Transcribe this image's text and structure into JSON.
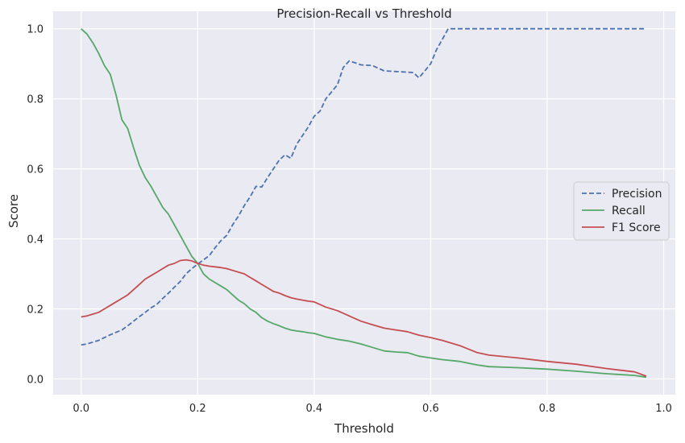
{
  "chart_data": {
    "type": "line",
    "title": "Precision-Recall vs Threshold",
    "xlabel": "Threshold",
    "ylabel": "Score",
    "xlim": [
      -0.048,
      1.02
    ],
    "ylim": [
      -0.045,
      1.05
    ],
    "xticks": [
      0.0,
      0.2,
      0.4,
      0.6,
      0.8,
      1.0
    ],
    "xtick_labels": [
      "0.0",
      "0.2",
      "0.4",
      "0.6",
      "0.8",
      "1.0"
    ],
    "yticks": [
      0.0,
      0.2,
      0.4,
      0.6,
      0.8,
      1.0
    ],
    "ytick_labels": [
      "0.0",
      "0.2",
      "0.4",
      "0.6",
      "0.8",
      "1.0"
    ],
    "grid": true,
    "background": "#eaeaf2",
    "grid_color": "#ffffff",
    "legend_position": "center-right",
    "series": [
      {
        "name": "Precision",
        "color": "#4c72b0",
        "style": "dashed",
        "x": [
          0.0,
          0.01,
          0.02,
          0.03,
          0.04,
          0.05,
          0.06,
          0.07,
          0.08,
          0.09,
          0.1,
          0.11,
          0.12,
          0.13,
          0.14,
          0.15,
          0.16,
          0.17,
          0.18,
          0.19,
          0.2,
          0.21,
          0.22,
          0.23,
          0.24,
          0.25,
          0.26,
          0.27,
          0.28,
          0.29,
          0.3,
          0.31,
          0.32,
          0.33,
          0.34,
          0.35,
          0.36,
          0.37,
          0.38,
          0.39,
          0.4,
          0.41,
          0.42,
          0.43,
          0.44,
          0.45,
          0.46,
          0.47,
          0.48,
          0.5,
          0.52,
          0.54,
          0.56,
          0.57,
          0.58,
          0.59,
          0.6,
          0.61,
          0.62,
          0.63,
          0.65,
          0.7,
          0.75,
          0.8,
          0.85,
          0.9,
          0.95,
          0.97
        ],
        "values": [
          0.097,
          0.1,
          0.105,
          0.11,
          0.118,
          0.126,
          0.133,
          0.14,
          0.152,
          0.165,
          0.178,
          0.19,
          0.203,
          0.213,
          0.23,
          0.245,
          0.262,
          0.278,
          0.3,
          0.315,
          0.328,
          0.34,
          0.352,
          0.375,
          0.395,
          0.41,
          0.44,
          0.465,
          0.495,
          0.52,
          0.55,
          0.548,
          0.575,
          0.6,
          0.625,
          0.64,
          0.63,
          0.67,
          0.695,
          0.72,
          0.75,
          0.765,
          0.8,
          0.82,
          0.84,
          0.89,
          0.908,
          0.903,
          0.897,
          0.895,
          0.88,
          0.878,
          0.876,
          0.875,
          0.86,
          0.88,
          0.9,
          0.94,
          0.97,
          1.0,
          1.0,
          1.0,
          1.0,
          1.0,
          1.0,
          1.0,
          1.0,
          1.0
        ]
      },
      {
        "name": "Recall",
        "color": "#55a868",
        "style": "solid",
        "x": [
          0.0,
          0.01,
          0.02,
          0.03,
          0.04,
          0.05,
          0.06,
          0.07,
          0.08,
          0.09,
          0.1,
          0.11,
          0.12,
          0.13,
          0.14,
          0.15,
          0.16,
          0.17,
          0.18,
          0.19,
          0.2,
          0.21,
          0.22,
          0.23,
          0.24,
          0.25,
          0.26,
          0.27,
          0.28,
          0.29,
          0.3,
          0.31,
          0.32,
          0.33,
          0.34,
          0.35,
          0.36,
          0.37,
          0.38,
          0.39,
          0.4,
          0.42,
          0.44,
          0.46,
          0.48,
          0.5,
          0.52,
          0.54,
          0.56,
          0.58,
          0.6,
          0.62,
          0.65,
          0.68,
          0.7,
          0.75,
          0.8,
          0.85,
          0.9,
          0.95,
          0.97
        ],
        "values": [
          1.0,
          0.985,
          0.96,
          0.93,
          0.895,
          0.87,
          0.81,
          0.74,
          0.715,
          0.66,
          0.61,
          0.575,
          0.55,
          0.52,
          0.49,
          0.47,
          0.44,
          0.41,
          0.38,
          0.35,
          0.33,
          0.3,
          0.285,
          0.275,
          0.265,
          0.255,
          0.24,
          0.225,
          0.215,
          0.2,
          0.19,
          0.175,
          0.165,
          0.158,
          0.152,
          0.145,
          0.14,
          0.137,
          0.135,
          0.132,
          0.13,
          0.12,
          0.113,
          0.108,
          0.1,
          0.09,
          0.08,
          0.077,
          0.075,
          0.065,
          0.06,
          0.055,
          0.05,
          0.04,
          0.035,
          0.032,
          0.028,
          0.022,
          0.015,
          0.01,
          0.005
        ]
      },
      {
        "name": "F1 Score",
        "color": "#c44e52",
        "style": "solid",
        "x": [
          0.0,
          0.01,
          0.02,
          0.03,
          0.04,
          0.05,
          0.06,
          0.07,
          0.08,
          0.09,
          0.1,
          0.11,
          0.12,
          0.13,
          0.14,
          0.15,
          0.16,
          0.17,
          0.18,
          0.19,
          0.2,
          0.21,
          0.22,
          0.23,
          0.24,
          0.25,
          0.26,
          0.27,
          0.28,
          0.29,
          0.3,
          0.31,
          0.32,
          0.33,
          0.34,
          0.35,
          0.36,
          0.37,
          0.38,
          0.39,
          0.4,
          0.42,
          0.44,
          0.46,
          0.48,
          0.5,
          0.52,
          0.54,
          0.56,
          0.58,
          0.6,
          0.62,
          0.65,
          0.68,
          0.7,
          0.75,
          0.8,
          0.85,
          0.9,
          0.95,
          0.97
        ],
        "values": [
          0.177,
          0.18,
          0.185,
          0.19,
          0.2,
          0.21,
          0.22,
          0.23,
          0.24,
          0.255,
          0.27,
          0.285,
          0.295,
          0.305,
          0.315,
          0.325,
          0.33,
          0.338,
          0.34,
          0.337,
          0.33,
          0.325,
          0.322,
          0.32,
          0.318,
          0.315,
          0.31,
          0.305,
          0.3,
          0.29,
          0.28,
          0.27,
          0.26,
          0.25,
          0.245,
          0.238,
          0.232,
          0.228,
          0.225,
          0.222,
          0.22,
          0.205,
          0.195,
          0.18,
          0.165,
          0.155,
          0.145,
          0.14,
          0.135,
          0.125,
          0.118,
          0.11,
          0.095,
          0.075,
          0.068,
          0.06,
          0.05,
          0.042,
          0.03,
          0.02,
          0.008
        ]
      }
    ]
  }
}
